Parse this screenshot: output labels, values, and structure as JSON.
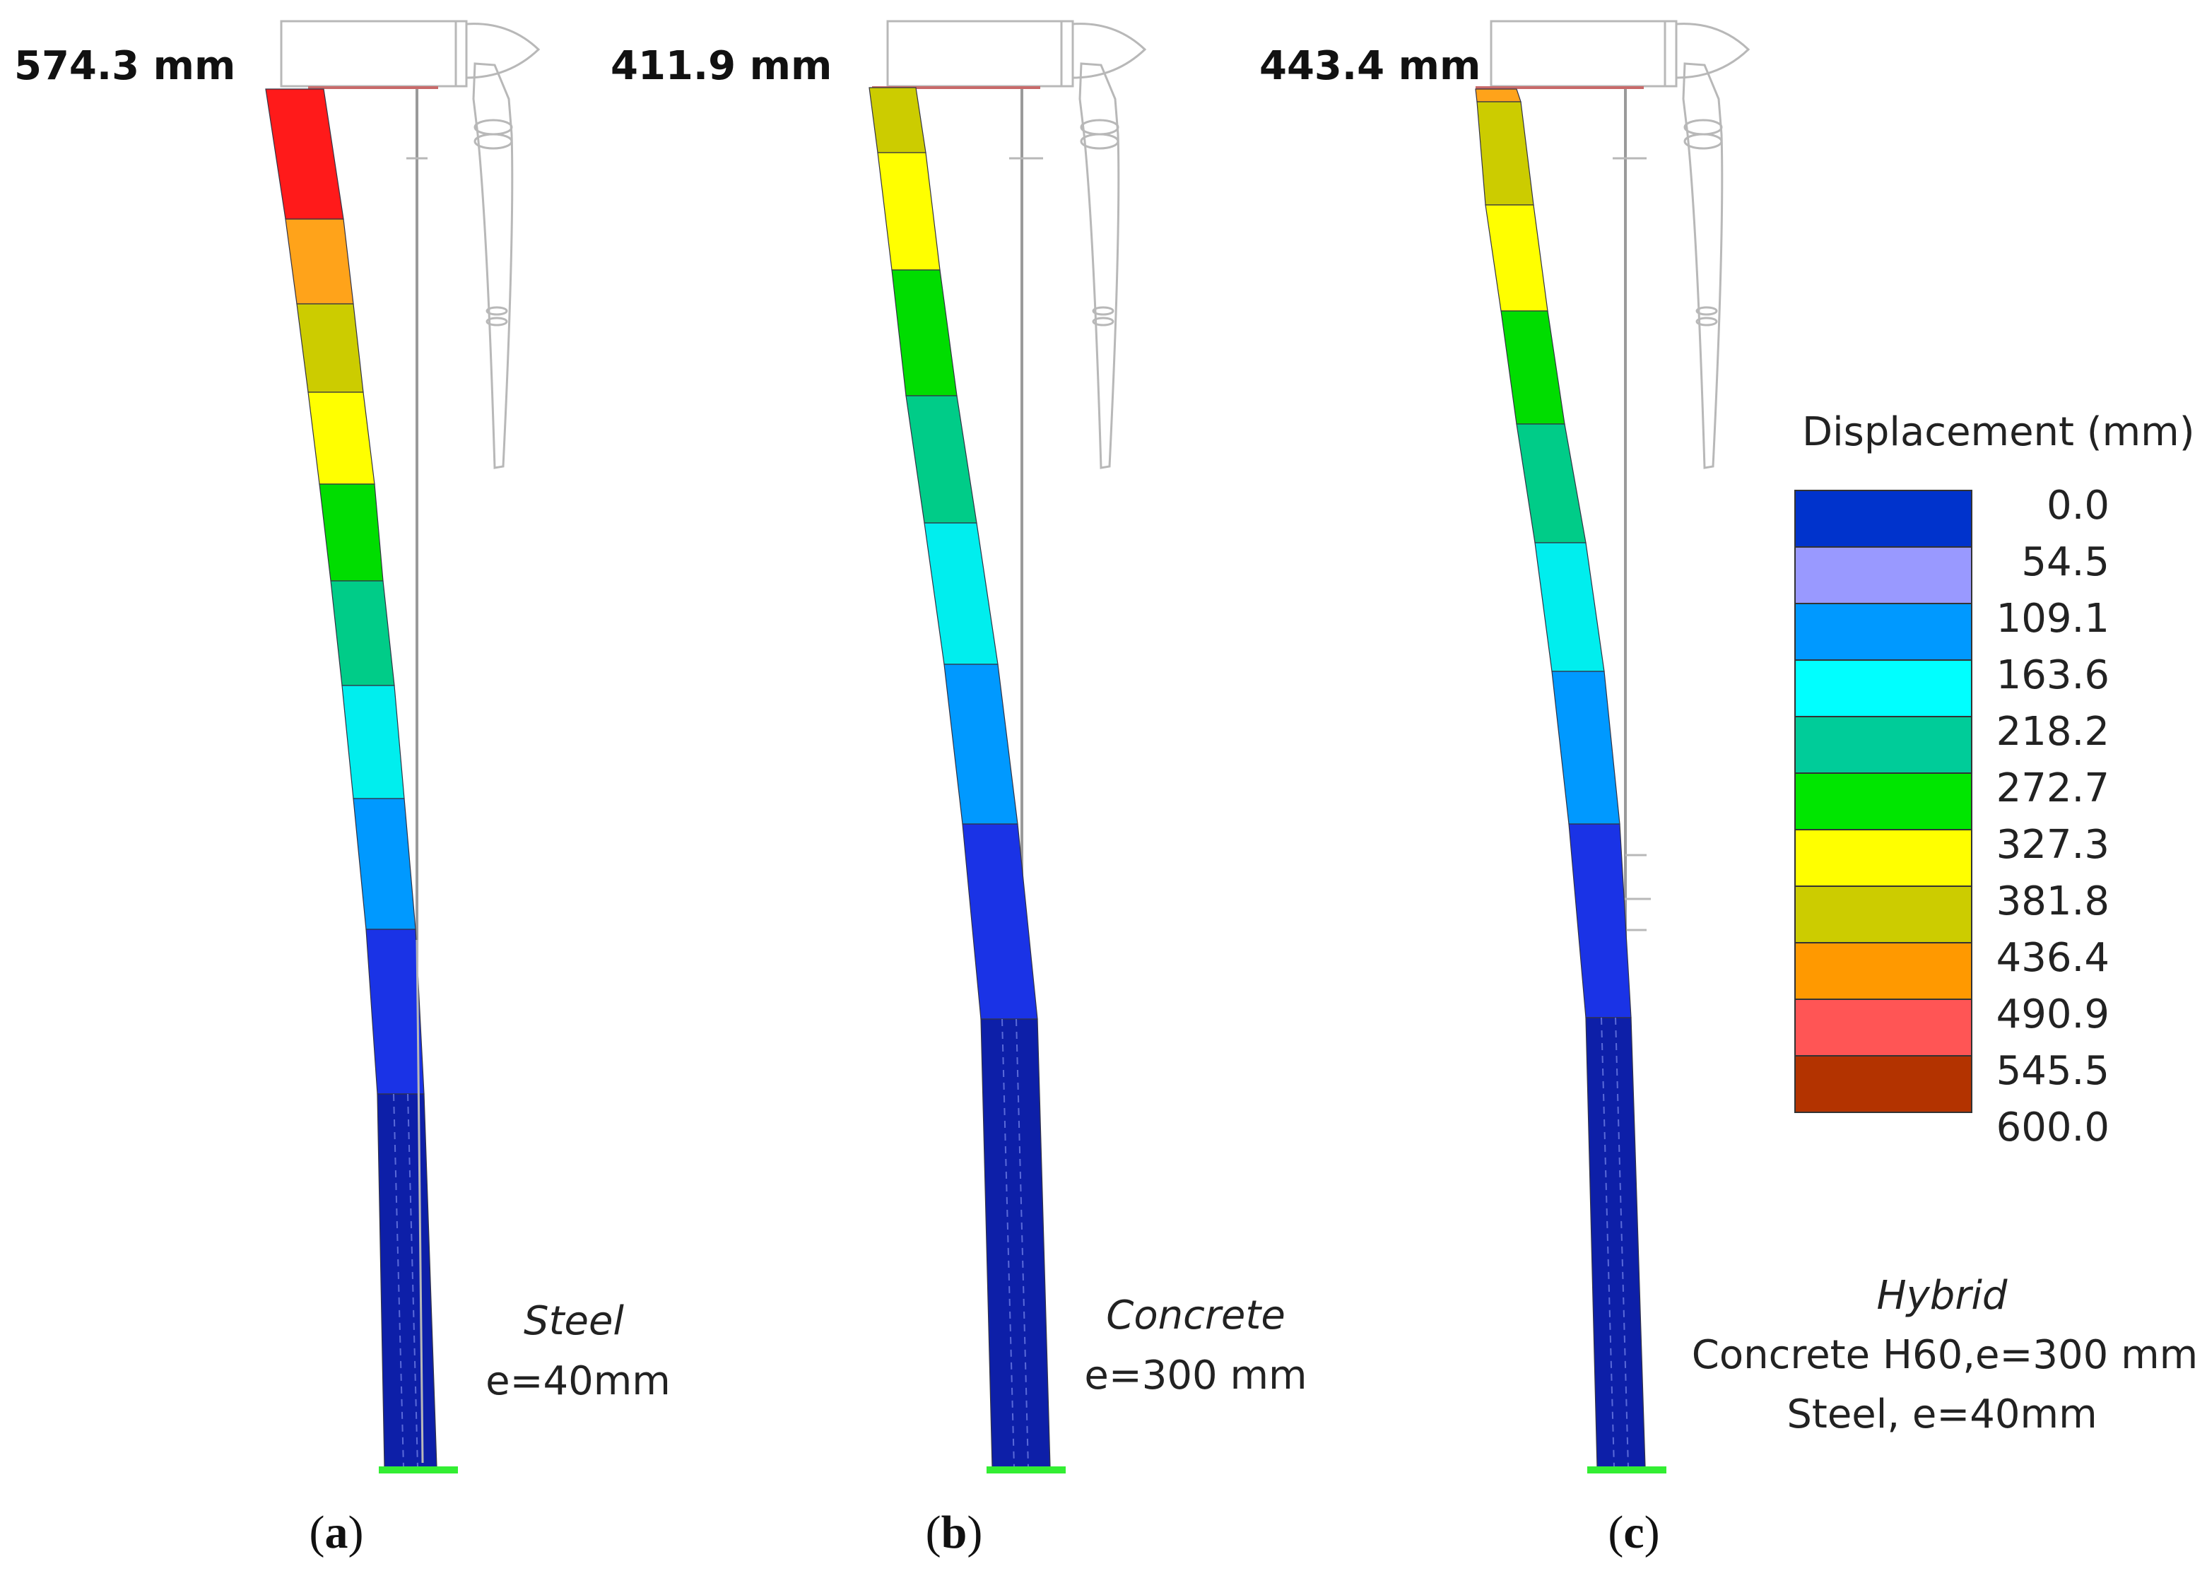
{
  "figure": {
    "legend": {
      "title": "Displacement (mm)",
      "colors": [
        "#0033cc",
        "#9999ff",
        "#0099ff",
        "#00ffff",
        "#00cc99",
        "#00e600",
        "#ffff00",
        "#cccc00",
        "#ff9900",
        "#ff5555",
        "#b33300"
      ],
      "ticks": [
        "0.0",
        "54.5",
        "109.1",
        "163.6",
        "218.2",
        "272.7",
        "327.3",
        "381.8",
        "436.4",
        "490.9",
        "545.5",
        "600.0"
      ]
    },
    "panels": [
      {
        "id": "a",
        "label_open": "(",
        "label_letter": "a",
        "label_close": ")",
        "max_displacement": "574.3 mm",
        "material_name": "Steel",
        "material_lines": [
          "e=40mm"
        ],
        "segment_colors": [
          "#ff1a1a",
          "#ffa31a",
          "#cccc00",
          "#ffff00",
          "#00dd00",
          "#00cc88",
          "#00eeee",
          "#0099ff",
          "#1a33e6",
          "#0d1fa8"
        ]
      },
      {
        "id": "b",
        "label_open": "(",
        "label_letter": "b",
        "label_close": ")",
        "max_displacement": "411.9 mm",
        "material_name": "Concrete",
        "material_lines": [
          "e=300 mm"
        ],
        "segment_colors": [
          "#cccc00",
          "#ffff00",
          "#00dd00",
          "#00cc88",
          "#00eeee",
          "#0099ff",
          "#1a33e6",
          "#0d1fa8"
        ]
      },
      {
        "id": "c",
        "label_open": "(",
        "label_letter": "c",
        "label_close": ")",
        "max_displacement": "443.4 mm",
        "material_name": "Hybrid",
        "material_lines": [
          "Concrete H60,e=300 mm",
          "Steel, e=40mm"
        ],
        "segment_colors": [
          "#ffa31a",
          "#cccc00",
          "#ffff00",
          "#00dd00",
          "#00cc88",
          "#00eeee",
          "#0099ff",
          "#1a33e6",
          "#0d1fa8"
        ]
      }
    ]
  }
}
